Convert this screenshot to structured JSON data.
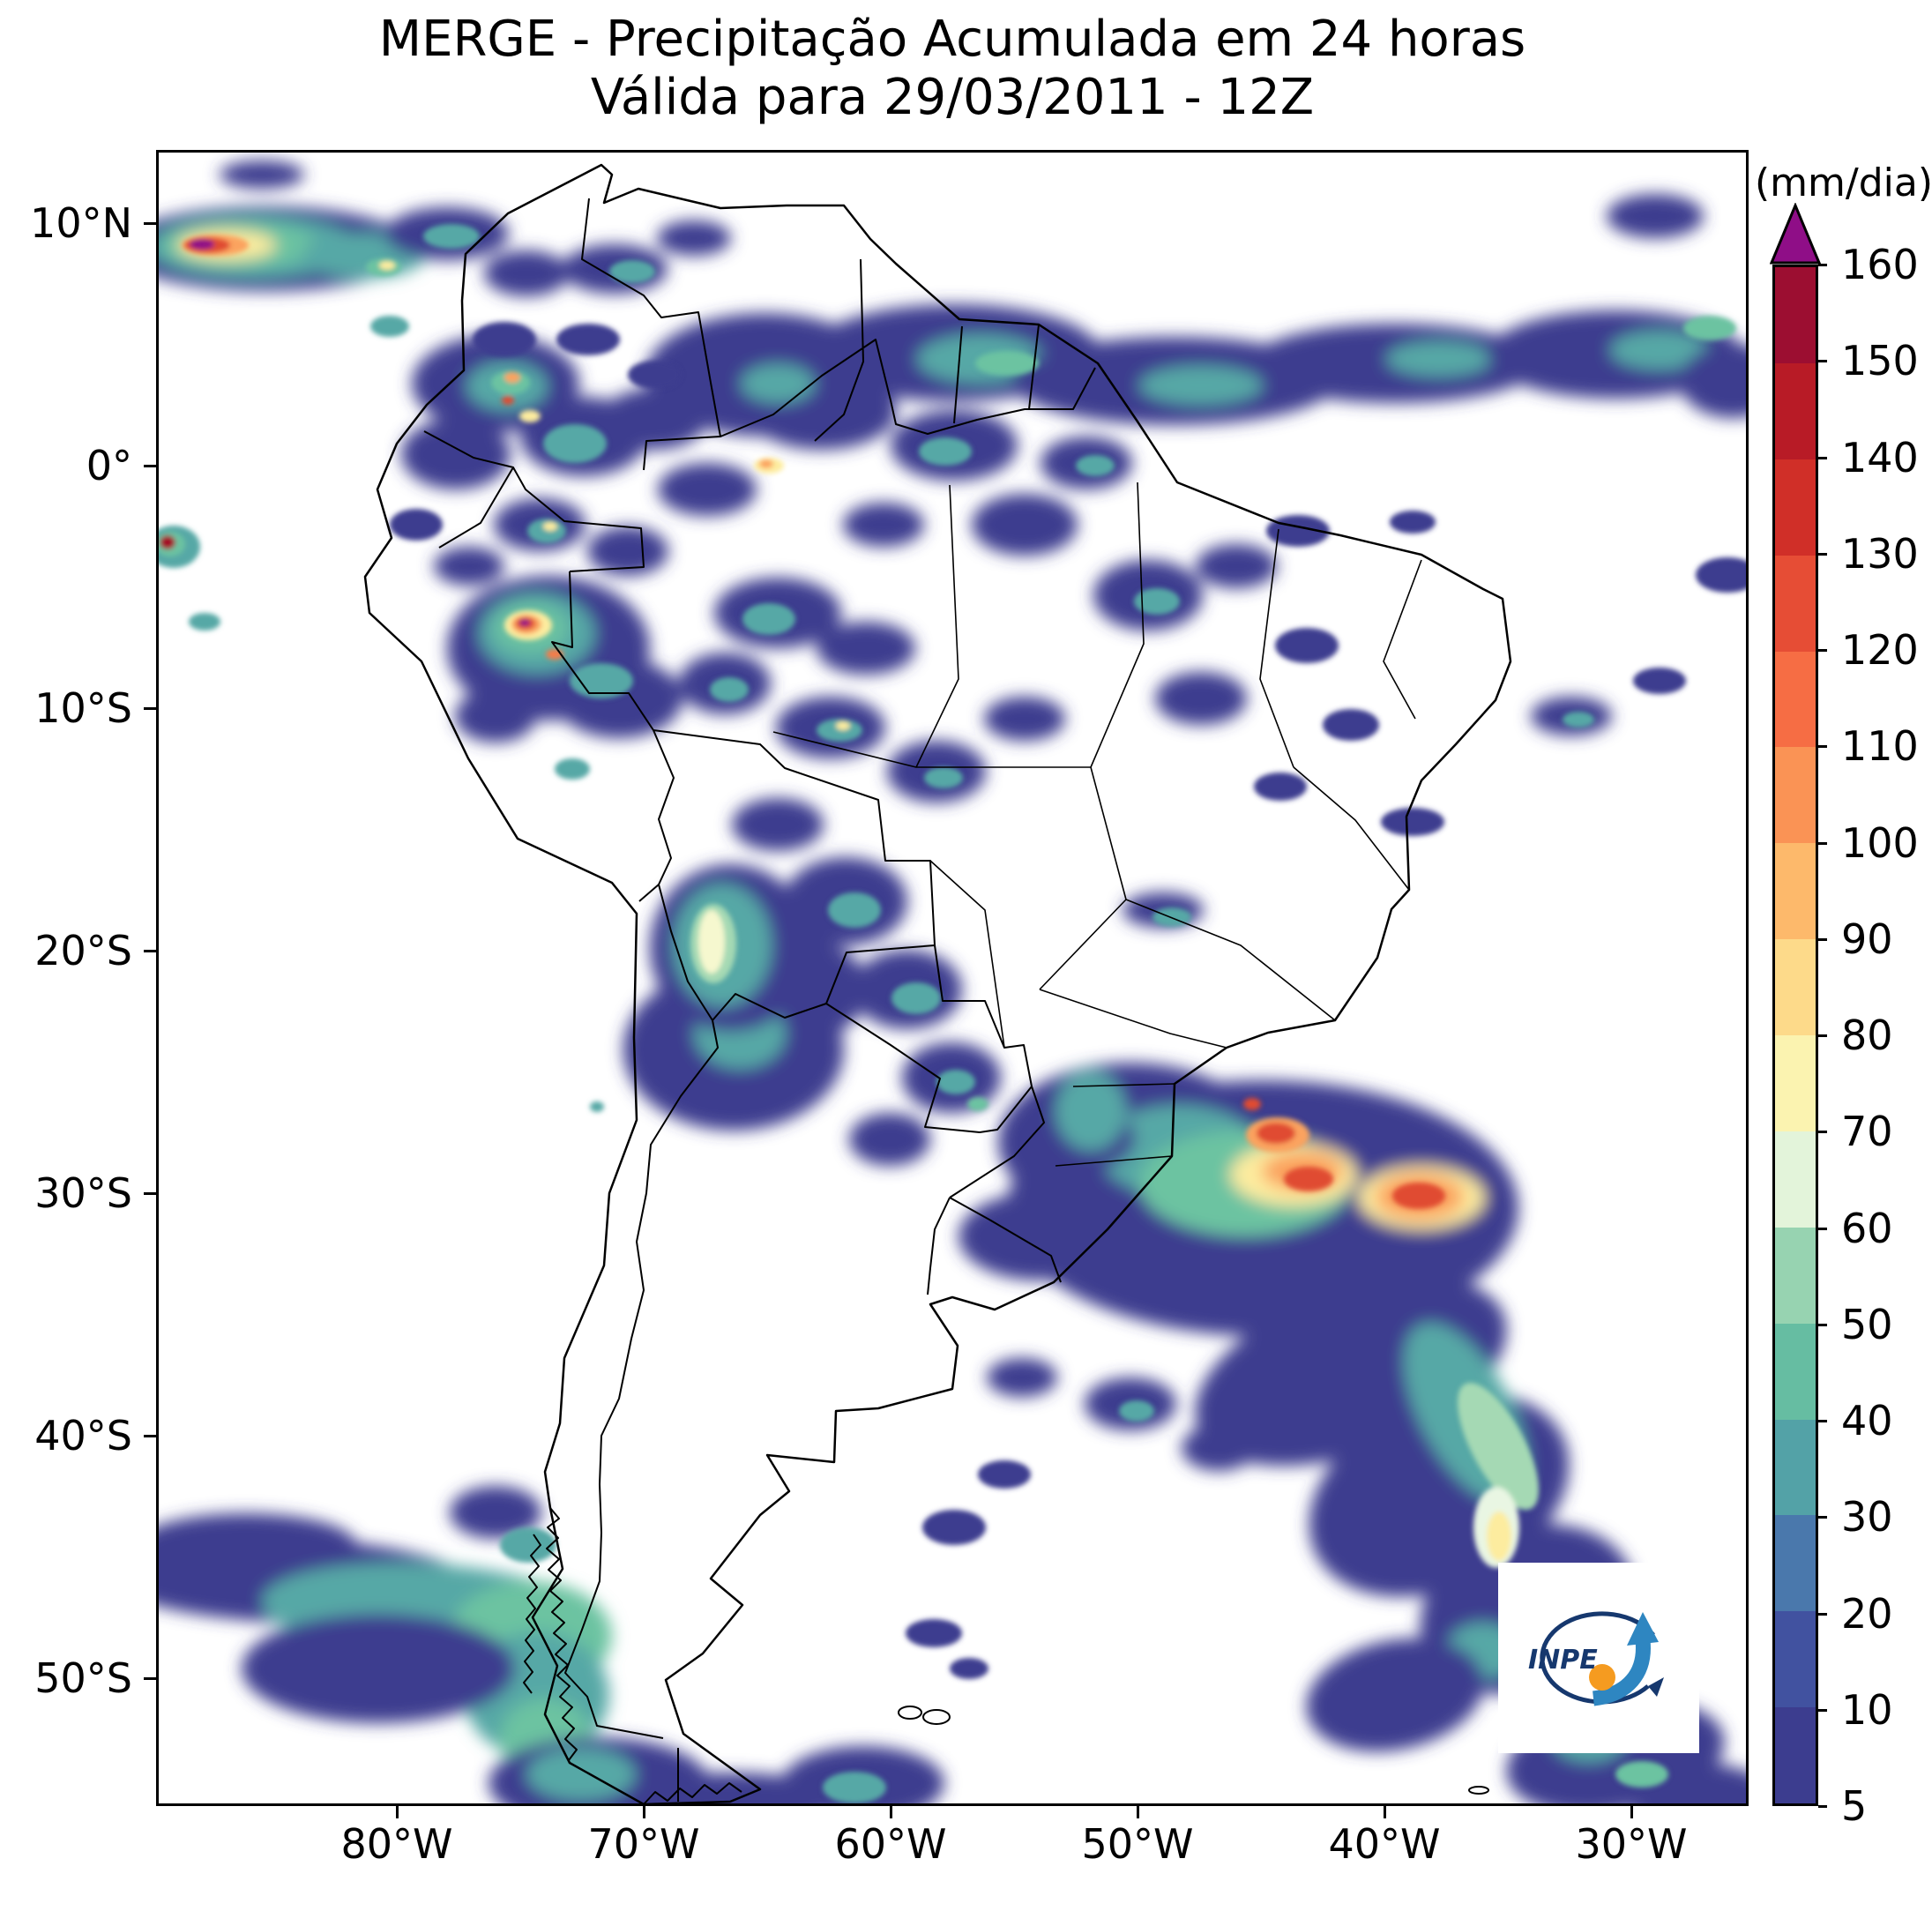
{
  "title": {
    "line1": "MERGE - Precipitação Acumulada em 24 horas",
    "line2": "Válida para 29/03/2011 - 12Z"
  },
  "axes": {
    "lat_ticks": [
      "10°N",
      "0°",
      "10°S",
      "20°S",
      "30°S",
      "40°S",
      "50°S"
    ],
    "lon_ticks": [
      "80°W",
      "70°W",
      "60°W",
      "50°W",
      "40°W",
      "30°W"
    ]
  },
  "colorbar": {
    "unit": "(mm/dia)",
    "tick_labels": [
      "160",
      "150",
      "140",
      "130",
      "120",
      "110",
      "100",
      "90",
      "80",
      "70",
      "60",
      "50",
      "40",
      "30",
      "20",
      "10",
      "5"
    ],
    "segment_colors": [
      "#3c3d8f",
      "#4152a0",
      "#4a78ac",
      "#53a2a7",
      "#66bda2",
      "#97d3b1",
      "#e3f4da",
      "#fbf3b0",
      "#fdda8a",
      "#fdb96b",
      "#fa9355",
      "#f66d44",
      "#e64d35",
      "#d02f28",
      "#b81b26",
      "#9c0e31"
    ],
    "extend_color": "#8f0e87"
  },
  "logo": {
    "text": "INPE"
  },
  "chart_data": {
    "type": "heatmap",
    "title": "MERGE - Precipitação Acumulada em 24 horas",
    "subtitle": "Válida para 29/03/2011 - 12Z",
    "units": "mm/dia",
    "levels": [
      5,
      10,
      20,
      30,
      40,
      50,
      60,
      70,
      80,
      90,
      100,
      110,
      120,
      130,
      140,
      150,
      160
    ],
    "colorbar_extend": "max",
    "lat_ticks": [
      "10°N",
      "0°",
      "10°S",
      "20°S",
      "30°S",
      "40°S",
      "50°S"
    ],
    "lon_ticks": [
      "80°W",
      "70°W",
      "60°W",
      "50°W",
      "40°W",
      "30°W"
    ]
  },
  "map": {
    "palette": {
      "d": "#3c3d8f",
      "b": "#4354a0",
      "s": "#4d7fae",
      "t": "#56a8a6",
      "g": "#6cc3a1",
      "l": "#a5d9b4",
      "p": "#e9f6e3",
      "c": "#f6f8cf",
      "y": "#fdec9f",
      "G": "#fdcf7d",
      "o": "#fba35e",
      "O": "#f67b4a",
      "r": "#e04b33",
      "R": "#c22727",
      "C": "#a31126",
      "m": "#8f0e87"
    },
    "precip_blobs": [
      [
        125,
        112,
        170,
        48,
        "d"
      ],
      [
        110,
        110,
        120,
        36,
        "t"
      ],
      [
        95,
        108,
        88,
        26,
        "g"
      ],
      [
        80,
        108,
        56,
        17,
        "y"
      ],
      [
        67,
        108,
        38,
        12,
        "o"
      ],
      [
        58,
        108,
        26,
        9,
        "r"
      ],
      [
        52,
        107,
        14,
        6,
        "m"
      ],
      [
        235,
        120,
        70,
        26,
        "t"
      ],
      [
        258,
        133,
        20,
        10,
        "g"
      ],
      [
        262,
        131,
        9,
        5,
        "y"
      ],
      [
        330,
        95,
        70,
        30,
        "d"
      ],
      [
        335,
        98,
        32,
        14,
        "t"
      ],
      [
        420,
        140,
        48,
        26,
        "d"
      ],
      [
        395,
        215,
        36,
        20,
        "d"
      ],
      [
        120,
        28,
        48,
        16,
        "d"
      ],
      [
        265,
        200,
        22,
        12,
        "t"
      ],
      [
        520,
        135,
        60,
        28,
        "d"
      ],
      [
        540,
        138,
        26,
        13,
        "t"
      ],
      [
        610,
        100,
        42,
        20,
        "d"
      ],
      [
        490,
        215,
        36,
        18,
        "d"
      ],
      [
        565,
        255,
        30,
        16,
        "d"
      ],
      [
        20,
        450,
        30,
        24,
        "t"
      ],
      [
        16,
        447,
        17,
        14,
        "g"
      ],
      [
        13,
        445,
        9,
        8,
        "C"
      ],
      [
        55,
        535,
        18,
        10,
        "t"
      ],
      [
        385,
        265,
        95,
        55,
        "d"
      ],
      [
        340,
        345,
        62,
        40,
        "d"
      ],
      [
        398,
        268,
        46,
        28,
        "t"
      ],
      [
        402,
        264,
        22,
        13,
        "g"
      ],
      [
        404,
        258,
        9,
        6,
        "o"
      ],
      [
        399,
        284,
        7,
        5,
        "r"
      ],
      [
        424,
        302,
        12,
        7,
        "y"
      ],
      [
        485,
        325,
        72,
        45,
        "d"
      ],
      [
        475,
        333,
        36,
        22,
        "t"
      ],
      [
        565,
        305,
        60,
        35,
        "d"
      ],
      [
        435,
        425,
        52,
        30,
        "d"
      ],
      [
        443,
        432,
        22,
        14,
        "t"
      ],
      [
        447,
        427,
        8,
        5,
        "y"
      ],
      [
        535,
        455,
        46,
        28,
        "d"
      ],
      [
        625,
        385,
        56,
        30,
        "d"
      ],
      [
        355,
        472,
        40,
        22,
        "d"
      ],
      [
        295,
        425,
        30,
        18,
        "d"
      ],
      [
        690,
        255,
        135,
        70,
        "d"
      ],
      [
        755,
        295,
        85,
        45,
        "d"
      ],
      [
        705,
        265,
        42,
        22,
        "t"
      ],
      [
        905,
        335,
        72,
        40,
        "d"
      ],
      [
        895,
        342,
        30,
        16,
        "t"
      ],
      [
        985,
        425,
        60,
        35,
        "d"
      ],
      [
        695,
        358,
        17,
        9,
        "y"
      ],
      [
        692,
        356,
        8,
        5,
        "o"
      ],
      [
        825,
        425,
        46,
        25,
        "d"
      ],
      [
        1055,
        355,
        52,
        30,
        "d"
      ],
      [
        1065,
        358,
        22,
        12,
        "t"
      ],
      [
        905,
        230,
        165,
        55,
        "d"
      ],
      [
        935,
        237,
        72,
        28,
        "t"
      ],
      [
        965,
        242,
        36,
        14,
        "g"
      ],
      [
        1155,
        262,
        185,
        50,
        "d"
      ],
      [
        1185,
        267,
        70,
        22,
        "t"
      ],
      [
        1405,
        242,
        165,
        45,
        "d"
      ],
      [
        1455,
        237,
        60,
        20,
        "t"
      ],
      [
        1655,
        232,
        145,
        50,
        "d"
      ],
      [
        1705,
        227,
        56,
        22,
        "t"
      ],
      [
        1762,
        202,
        30,
        14,
        "g"
      ],
      [
        1788,
        262,
        60,
        42,
        "d"
      ],
      [
        1295,
        432,
        36,
        18,
        "d"
      ],
      [
        1425,
        422,
        26,
        13,
        "d"
      ],
      [
        1700,
        75,
        55,
        25,
        "d"
      ],
      [
        1125,
        505,
        62,
        40,
        "d"
      ],
      [
        1135,
        512,
        26,
        15,
        "t"
      ],
      [
        1225,
        472,
        46,
        25,
        "d"
      ],
      [
        1185,
        622,
        52,
        30,
        "d"
      ],
      [
        1305,
        562,
        36,
        20,
        "d"
      ],
      [
        1355,
        652,
        32,
        18,
        "d"
      ],
      [
        1275,
        722,
        30,
        16,
        "d"
      ],
      [
        1605,
        642,
        46,
        22,
        "d"
      ],
      [
        1613,
        646,
        18,
        9,
        "t"
      ],
      [
        1705,
        602,
        30,
        15,
        "d"
      ],
      [
        1425,
        762,
        36,
        16,
        "d"
      ],
      [
        1782,
        482,
        36,
        20,
        "d"
      ],
      [
        705,
        525,
        72,
        40,
        "d"
      ],
      [
        695,
        532,
        30,
        18,
        "t"
      ],
      [
        805,
        565,
        56,
        30,
        "d"
      ],
      [
        645,
        605,
        52,
        35,
        "d"
      ],
      [
        650,
        612,
        22,
        14,
        "t"
      ],
      [
        765,
        655,
        62,
        35,
        "d"
      ],
      [
        775,
        658,
        26,
        13,
        "t"
      ],
      [
        779,
        653,
        8,
        5,
        "y"
      ],
      [
        885,
        705,
        56,
        35,
        "d"
      ],
      [
        893,
        712,
        22,
        12,
        "t"
      ],
      [
        985,
        645,
        46,
        25,
        "d"
      ],
      [
        705,
        765,
        52,
        30,
        "d"
      ],
      [
        445,
        565,
        115,
        82,
        "d"
      ],
      [
        432,
        548,
        66,
        46,
        "t"
      ],
      [
        425,
        542,
        42,
        28,
        "g"
      ],
      [
        422,
        539,
        27,
        17,
        "y"
      ],
      [
        420,
        538,
        17,
        11,
        "o"
      ],
      [
        419,
        537,
        11,
        7,
        "r"
      ],
      [
        418,
        536,
        6,
        4,
        "m"
      ],
      [
        452,
        572,
        10,
        6,
        "O"
      ],
      [
        525,
        622,
        72,
        45,
        "d"
      ],
      [
        505,
        602,
        36,
        20,
        "t"
      ],
      [
        385,
        642,
        46,
        30,
        "d"
      ],
      [
        472,
        702,
        20,
        12,
        "t"
      ],
      [
        500,
        1085,
        8,
        6,
        "t"
      ],
      [
        655,
        1020,
        125,
        92,
        "d"
      ],
      [
        725,
        952,
        82,
        60,
        "d"
      ],
      [
        662,
        1002,
        52,
        40,
        "t"
      ],
      [
        652,
        905,
        92,
        95,
        "d"
      ],
      [
        642,
        902,
        56,
        70,
        "t"
      ],
      [
        632,
        900,
        26,
        45,
        "l"
      ],
      [
        630,
        898,
        15,
        36,
        "c"
      ],
      [
        782,
        852,
        70,
        50,
        "d"
      ],
      [
        792,
        862,
        30,
        20,
        "t"
      ],
      [
        852,
        952,
        62,
        45,
        "d"
      ],
      [
        862,
        962,
        28,
        18,
        "t"
      ],
      [
        902,
        1052,
        56,
        40,
        "d"
      ],
      [
        907,
        1057,
        22,
        14,
        "t"
      ],
      [
        932,
        1082,
        12,
        8,
        "g"
      ],
      [
        832,
        1122,
        46,
        30,
        "d"
      ],
      [
        1142,
        862,
        46,
        20,
        "d"
      ],
      [
        1152,
        870,
        22,
        11,
        "t"
      ],
      [
        1255,
        1200,
        290,
        145,
        "d"
      ],
      [
        1105,
        1125,
        150,
        90,
        "d"
      ],
      [
        1160,
        1135,
        92,
        52,
        "t"
      ],
      [
        1235,
        1172,
        120,
        60,
        "g"
      ],
      [
        1290,
        1162,
        72,
        36,
        "y"
      ],
      [
        1300,
        1158,
        46,
        22,
        "o"
      ],
      [
        1272,
        1117,
        36,
        20,
        "o"
      ],
      [
        1270,
        1115,
        22,
        12,
        "r"
      ],
      [
        1307,
        1167,
        28,
        14,
        "r"
      ],
      [
        1435,
        1188,
        72,
        36,
        "y"
      ],
      [
        1433,
        1187,
        50,
        26,
        "o"
      ],
      [
        1432,
        1186,
        30,
        15,
        "r"
      ],
      [
        1243,
        1082,
        10,
        7,
        "r"
      ],
      [
        1002,
        1232,
        92,
        50,
        "d"
      ],
      [
        1040,
        1120,
        70,
        40,
        "d"
      ],
      [
        1060,
        1090,
        40,
        45,
        "t"
      ],
      [
        1355,
        1385,
        185,
        92,
        "d",
        -20
      ],
      [
        1455,
        1525,
        155,
        105,
        "d",
        -25
      ],
      [
        1485,
        1432,
        52,
        112,
        "t",
        -28
      ],
      [
        1522,
        1470,
        30,
        80,
        "l",
        -28
      ],
      [
        1520,
        1562,
        26,
        46,
        "p"
      ],
      [
        1523,
        1572,
        14,
        28,
        "y"
      ],
      [
        1555,
        1655,
        125,
        92,
        "d",
        -20
      ],
      [
        1505,
        1702,
        42,
        32,
        "t"
      ],
      [
        1405,
        1752,
        102,
        62,
        "d",
        -12
      ],
      [
        1655,
        1822,
        125,
        62,
        "d",
        -10
      ],
      [
        1625,
        1802,
        42,
        26,
        "t"
      ],
      [
        1685,
        1842,
        30,
        15,
        "g"
      ],
      [
        1755,
        1872,
        82,
        42,
        "d"
      ],
      [
        1105,
        1422,
        52,
        30,
        "d"
      ],
      [
        1112,
        1430,
        20,
        12,
        "t"
      ],
      [
        1205,
        1472,
        42,
        26,
        "d"
      ],
      [
        982,
        1392,
        40,
        22,
        "d"
      ],
      [
        150,
        1622,
        210,
        48,
        "d",
        2
      ],
      [
        305,
        1655,
        185,
        52,
        "t",
        3
      ],
      [
        425,
        1685,
        92,
        62,
        "g"
      ],
      [
        432,
        1752,
        82,
        72,
        "t"
      ],
      [
        442,
        1802,
        52,
        46,
        "g"
      ],
      [
        252,
        1722,
        155,
        62,
        "d"
      ],
      [
        102,
        1582,
        125,
        36,
        "d"
      ],
      [
        502,
        1852,
        125,
        52,
        "d"
      ],
      [
        482,
        1842,
        62,
        30,
        "t"
      ],
      [
        652,
        1872,
        125,
        32,
        "d"
      ],
      [
        802,
        1852,
        92,
        42,
        "d"
      ],
      [
        792,
        1857,
        36,
        18,
        "t"
      ],
      [
        422,
        1582,
        32,
        20,
        "t"
      ],
      [
        385,
        1545,
        52,
        30,
        "d"
      ],
      [
        882,
        1682,
        32,
        16,
        "d"
      ],
      [
        922,
        1722,
        22,
        12,
        "d"
      ],
      [
        905,
        1562,
        36,
        20,
        "d"
      ],
      [
        962,
        1502,
        30,
        16,
        "d"
      ]
    ]
  }
}
